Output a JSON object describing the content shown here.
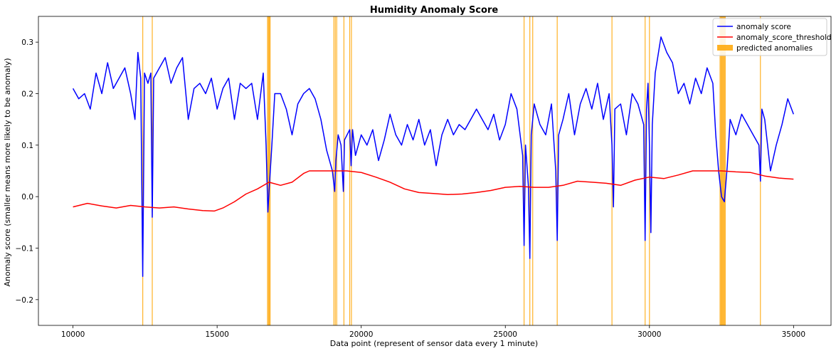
{
  "chart_data": {
    "type": "line",
    "title": "Humidity Anomaly Score",
    "xlabel": "Data point (represent of sensor data every 1 minute)",
    "ylabel": "Anomaly score (smaller means more likely to be anomaly)",
    "xlim": [
      8800,
      36300
    ],
    "ylim": [
      -0.25,
      0.35
    ],
    "xticks": [
      10000,
      15000,
      20000,
      25000,
      30000,
      35000
    ],
    "xtick_labels": [
      "10000",
      "15000",
      "20000",
      "25000",
      "30000",
      "35000"
    ],
    "yticks": [
      -0.2,
      -0.1,
      0.0,
      0.1,
      0.2,
      0.3
    ],
    "ytick_labels": [
      "−0.2",
      "−0.1",
      "0.0",
      "0.1",
      "0.2",
      "0.3"
    ],
    "grid": false,
    "legend_position": "top-right",
    "legend": [
      "anomaly score",
      "anomaly_score_threshold",
      "predicted anomalies"
    ],
    "colors": {
      "score": "#0000ff",
      "threshold": "#ff0000",
      "anomaly": "#ffa500"
    },
    "series": [
      {
        "name": "anomaly score",
        "x": [
          10000,
          10200,
          10400,
          10600,
          10800,
          11000,
          11200,
          11400,
          11600,
          11800,
          12000,
          12150,
          12250,
          12350,
          12420,
          12480,
          12600,
          12700,
          12750,
          12800,
          13000,
          13200,
          13400,
          13600,
          13800,
          14000,
          14200,
          14400,
          14600,
          14800,
          15000,
          15200,
          15400,
          15600,
          15800,
          16000,
          16200,
          16400,
          16600,
          16700,
          16760,
          16800,
          16900,
          17000,
          17200,
          17400,
          17600,
          17800,
          18000,
          18200,
          18400,
          18600,
          18800,
          19000,
          19080,
          19120,
          19200,
          19300,
          19380,
          19420,
          19600,
          19650,
          19700,
          19800,
          20000,
          20200,
          20400,
          20600,
          20800,
          21000,
          21200,
          21400,
          21600,
          21800,
          22000,
          22200,
          22400,
          22600,
          22800,
          23000,
          23200,
          23400,
          23600,
          23800,
          24000,
          24200,
          24400,
          24600,
          24800,
          25000,
          25200,
          25400,
          25600,
          25650,
          25700,
          25800,
          25850,
          25900,
          26000,
          26200,
          26400,
          26600,
          26750,
          26800,
          26850,
          27000,
          27200,
          27400,
          27600,
          27800,
          28000,
          28200,
          28400,
          28600,
          28700,
          28750,
          28800,
          29000,
          29200,
          29400,
          29600,
          29800,
          29850,
          29900,
          29950,
          30000,
          30050,
          30100,
          30200,
          30400,
          30600,
          30800,
          31000,
          31200,
          31400,
          31600,
          31800,
          32000,
          32200,
          32300,
          32400,
          32500,
          32600,
          32700,
          32800,
          33000,
          33200,
          33400,
          33600,
          33800,
          33850,
          33900,
          34000,
          34200,
          34400,
          34600,
          34800,
          35000
        ],
        "values": [
          0.21,
          0.19,
          0.2,
          0.17,
          0.24,
          0.2,
          0.26,
          0.21,
          0.23,
          0.25,
          0.2,
          0.15,
          0.28,
          0.23,
          -0.155,
          0.24,
          0.22,
          0.24,
          -0.04,
          0.23,
          0.25,
          0.27,
          0.22,
          0.25,
          0.27,
          0.15,
          0.21,
          0.22,
          0.2,
          0.23,
          0.17,
          0.21,
          0.23,
          0.15,
          0.22,
          0.21,
          0.22,
          0.15,
          0.24,
          0.1,
          -0.03,
          0.01,
          0.1,
          0.2,
          0.2,
          0.17,
          0.12,
          0.18,
          0.2,
          0.21,
          0.19,
          0.15,
          0.09,
          0.05,
          0.01,
          0.07,
          0.12,
          0.1,
          0.01,
          0.11,
          0.13,
          0.06,
          0.13,
          0.08,
          0.12,
          0.1,
          0.13,
          0.07,
          0.11,
          0.16,
          0.12,
          0.1,
          0.14,
          0.11,
          0.15,
          0.1,
          0.13,
          0.06,
          0.12,
          0.15,
          0.12,
          0.14,
          0.13,
          0.15,
          0.17,
          0.15,
          0.13,
          0.16,
          0.11,
          0.14,
          0.2,
          0.17,
          0.08,
          -0.095,
          0.1,
          0.02,
          -0.12,
          0.12,
          0.18,
          0.14,
          0.12,
          0.18,
          0.05,
          -0.085,
          0.12,
          0.15,
          0.2,
          0.12,
          0.18,
          0.21,
          0.17,
          0.22,
          0.15,
          0.2,
          0.1,
          -0.02,
          0.17,
          0.18,
          0.12,
          0.2,
          0.18,
          0.14,
          -0.085,
          0.17,
          0.22,
          0.1,
          -0.07,
          0.14,
          0.24,
          0.31,
          0.28,
          0.26,
          0.2,
          0.22,
          0.18,
          0.23,
          0.2,
          0.25,
          0.22,
          0.12,
          0.05,
          0.0,
          -0.01,
          0.06,
          0.15,
          0.12,
          0.16,
          0.14,
          0.12,
          0.1,
          0.03,
          0.17,
          0.15,
          0.05,
          0.1,
          0.14,
          0.19,
          0.16
        ]
      },
      {
        "name": "anomaly_score_threshold",
        "x": [
          10000,
          10500,
          11000,
          11500,
          12000,
          12500,
          13000,
          13500,
          14000,
          14500,
          14900,
          15200,
          15600,
          16000,
          16400,
          16800,
          17200,
          17600,
          18000,
          18200,
          18600,
          19000,
          19500,
          20000,
          20500,
          21000,
          21500,
          22000,
          22500,
          23000,
          23500,
          24000,
          24500,
          25000,
          25500,
          26000,
          26500,
          27000,
          27500,
          28000,
          28500,
          29000,
          29500,
          30000,
          30500,
          31000,
          31500,
          32000,
          32500,
          33000,
          33500,
          34000,
          34500,
          35000
        ],
        "values": [
          -0.02,
          -0.013,
          -0.018,
          -0.022,
          -0.017,
          -0.02,
          -0.022,
          -0.02,
          -0.024,
          -0.027,
          -0.028,
          -0.022,
          -0.01,
          0.005,
          0.015,
          0.028,
          0.022,
          0.028,
          0.045,
          0.05,
          0.05,
          0.05,
          0.05,
          0.047,
          0.038,
          0.028,
          0.015,
          0.008,
          0.006,
          0.004,
          0.005,
          0.008,
          0.012,
          0.018,
          0.02,
          0.018,
          0.018,
          0.022,
          0.03,
          0.028,
          0.026,
          0.022,
          0.032,
          0.038,
          0.035,
          0.042,
          0.05,
          0.05,
          0.05,
          0.048,
          0.047,
          0.04,
          0.036,
          0.034
        ]
      }
    ],
    "predicted_anomalies": [
      12420,
      12750,
      16750,
      16780,
      16810,
      16840,
      19050,
      19100,
      19150,
      19400,
      19600,
      19660,
      25650,
      25850,
      25950,
      26800,
      28700,
      29850,
      30000,
      32450,
      32480,
      32510,
      32540,
      32570,
      32600,
      32630,
      33850
    ]
  }
}
